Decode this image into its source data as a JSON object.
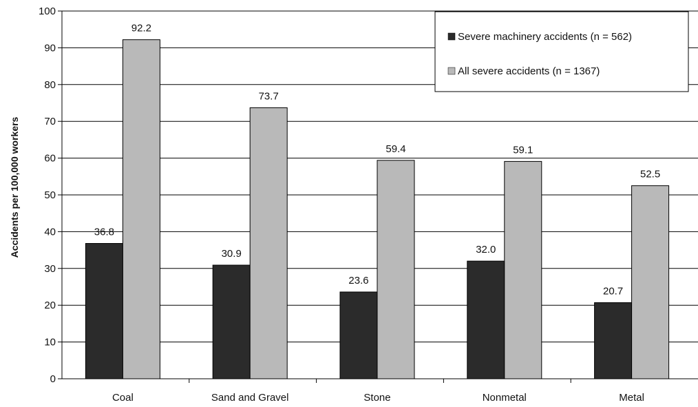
{
  "chart_data": {
    "type": "bar",
    "categories": [
      "Coal",
      "Sand and Gravel",
      "Stone",
      "Nonmetal",
      "Metal"
    ],
    "series": [
      {
        "name": "Severe machinery accidents (n = 562)",
        "values": [
          36.8,
          30.9,
          23.6,
          32.0,
          20.7
        ],
        "value_labels": [
          "36.8",
          "30.9",
          "23.6",
          "32.0",
          "20.7"
        ],
        "color": "#2b2b2b"
      },
      {
        "name": "All severe accidents (n = 1367)",
        "values": [
          92.2,
          73.7,
          59.4,
          59.1,
          52.5
        ],
        "value_labels": [
          "92.2",
          "73.7",
          "59.4",
          "59.1",
          "52.5"
        ],
        "color": "#b9b9b9"
      }
    ],
    "title": "",
    "xlabel": "",
    "ylabel": "Accidents per 100,000 workers",
    "ylim": [
      0,
      100
    ],
    "yticks": [
      0,
      10,
      20,
      30,
      40,
      50,
      60,
      70,
      80,
      90,
      100
    ],
    "grid": true,
    "legend_position": "top-right"
  }
}
